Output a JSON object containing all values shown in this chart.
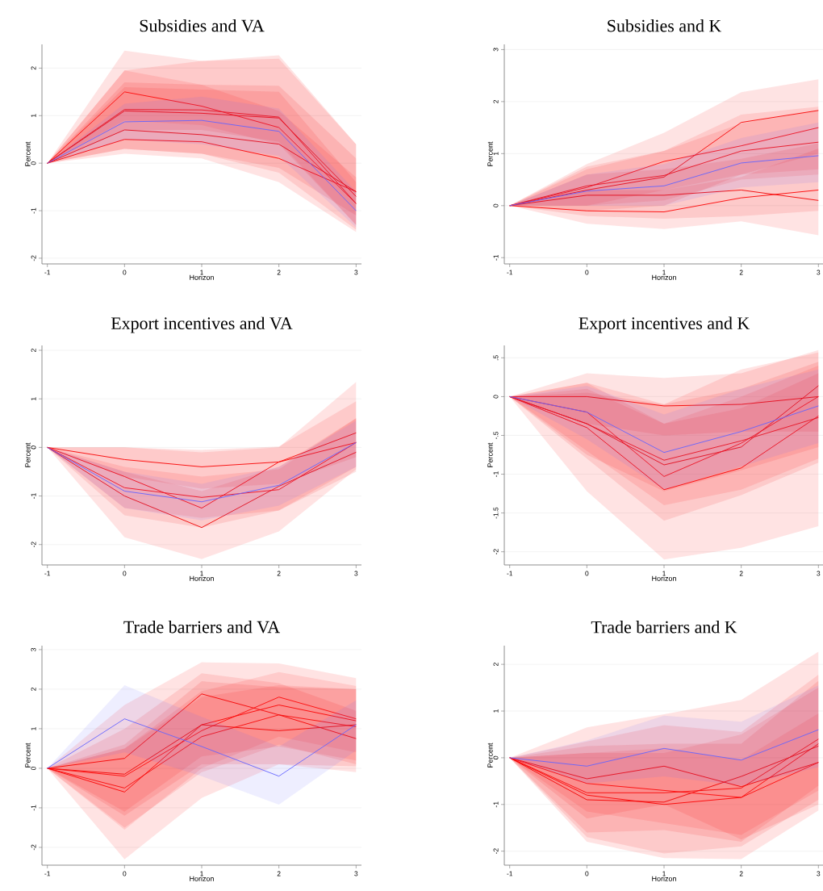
{
  "chart_data": [
    {
      "type": "line",
      "title": "Subsidies and VA",
      "xlabel": "Horizon",
      "ylabel": "Percent",
      "x": [
        -1,
        0,
        1,
        2,
        3
      ],
      "xlim": [
        -1.07,
        3.07
      ],
      "ylim": [
        -2.12,
        2.5
      ],
      "xticks": [
        -1,
        0,
        1,
        2,
        3
      ],
      "yticks": [
        -2,
        -1,
        0,
        1,
        2
      ],
      "grid": "y",
      "series": [
        {
          "color": "#ff0000",
          "values": [
            0,
            0.5,
            0.45,
            0.1,
            -0.6
          ],
          "lower": [
            0,
            0.2,
            0.1,
            -0.4,
            -1.45
          ],
          "upper": [
            0,
            1.95,
            2.15,
            2.2,
            0.4
          ]
        },
        {
          "color": "#f80000",
          "values": [
            0,
            1.1,
            1.05,
            0.95,
            -0.7
          ],
          "lower": [
            0,
            0.3,
            0.2,
            -0.2,
            -1.4
          ],
          "upper": [
            0,
            2.37,
            2.15,
            2.27,
            0.4
          ]
        },
        {
          "color": "#f00000",
          "values": [
            0,
            0.7,
            0.6,
            0.4,
            -0.6
          ],
          "lower": [
            0,
            0.3,
            0.2,
            -0.1,
            -1.1
          ],
          "upper": [
            0,
            1.7,
            1.65,
            1.63,
            0.1
          ]
        },
        {
          "color": "#ff0808",
          "values": [
            0,
            1.5,
            1.2,
            0.75,
            -0.85
          ],
          "lower": [
            0,
            0.9,
            0.8,
            0.4,
            -1.3
          ],
          "upper": [
            0,
            1.95,
            1.65,
            1.1,
            -0.3
          ]
        },
        {
          "color": "#f80808",
          "values": [
            0,
            1.13,
            1.12,
            0.97,
            -0.85
          ],
          "lower": [
            0,
            0.7,
            0.7,
            0.45,
            -1.3
          ],
          "upper": [
            0,
            1.6,
            1.55,
            1.5,
            -0.4
          ]
        },
        {
          "color": "#6464ff",
          "values": [
            0,
            0.87,
            0.9,
            0.67,
            -1.0
          ],
          "lower": [
            0,
            0.5,
            0.4,
            0.15,
            -1.35
          ],
          "upper": [
            0,
            1.25,
            1.4,
            1.15,
            -0.6
          ]
        }
      ]
    },
    {
      "type": "line",
      "title": "Subsidies and K",
      "xlabel": "Horizon",
      "ylabel": "Percent",
      "x": [
        -1,
        0,
        1,
        2,
        3
      ],
      "xlim": [
        -1.07,
        3.07
      ],
      "ylim": [
        -1.12,
        3.1
      ],
      "xticks": [
        -1,
        0,
        1,
        2,
        3
      ],
      "yticks": [
        -1,
        0,
        1,
        2,
        3
      ],
      "grid": "y",
      "series": [
        {
          "color": "#ff0000",
          "values": [
            0,
            -0.1,
            -0.12,
            0.15,
            0.3
          ],
          "lower": [
            0,
            -0.35,
            -0.45,
            -0.3,
            -0.57
          ],
          "upper": [
            0,
            0.3,
            0.3,
            0.55,
            1.1
          ]
        },
        {
          "color": "#f80000",
          "values": [
            0,
            0.3,
            0.55,
            1.6,
            1.83
          ],
          "lower": [
            0,
            -0.1,
            0,
            0.6,
            1.0
          ],
          "upper": [
            0,
            0.8,
            1.4,
            2.18,
            2.43
          ]
        },
        {
          "color": "#f00000",
          "values": [
            0,
            0.2,
            0.2,
            0.3,
            0.1
          ],
          "lower": [
            0,
            -0.2,
            -0.25,
            -0.2,
            -0.1
          ],
          "upper": [
            0,
            0.6,
            0.7,
            0.9,
            1.2
          ]
        },
        {
          "color": "#ff0808",
          "values": [
            0,
            0.35,
            0.85,
            1.15,
            1.5
          ],
          "lower": [
            0,
            0,
            0.3,
            0.6,
            0.7
          ],
          "upper": [
            0,
            0.7,
            1.05,
            1.75,
            1.9
          ]
        },
        {
          "color": "#f80808",
          "values": [
            0,
            0.38,
            0.58,
            1.05,
            1.22
          ],
          "lower": [
            0,
            0,
            0.1,
            0.5,
            0.6
          ],
          "upper": [
            0,
            0.75,
            1.05,
            1.58,
            1.83
          ]
        },
        {
          "color": "#6464ff",
          "values": [
            0,
            0.28,
            0.38,
            0.82,
            0.96
          ],
          "lower": [
            0,
            0,
            0,
            0.35,
            0.45
          ],
          "upper": [
            0,
            0.6,
            0.8,
            1.3,
            1.6
          ]
        }
      ]
    },
    {
      "type": "line",
      "title": "Export incentives and VA",
      "xlabel": "Horizon",
      "ylabel": "Percent",
      "x": [
        -1,
        0,
        1,
        2,
        3
      ],
      "xlim": [
        -1.07,
        3.07
      ],
      "ylim": [
        -2.42,
        2.1
      ],
      "xticks": [
        -1,
        0,
        1,
        2,
        3
      ],
      "yticks": [
        -2,
        -1,
        0,
        1,
        2
      ],
      "grid": "y",
      "series": [
        {
          "color": "#ff0000",
          "values": [
            0,
            -0.6,
            -1.25,
            -0.3,
            0.1
          ],
          "lower": [
            0,
            -1.85,
            -2.3,
            -1.73,
            -0.45
          ],
          "upper": [
            0,
            0,
            -0.1,
            0,
            1.35
          ]
        },
        {
          "color": "#f80000",
          "values": [
            0,
            -0.25,
            -0.4,
            -0.3,
            0.3
          ],
          "lower": [
            0,
            -0.6,
            -0.85,
            -0.75,
            -0.2
          ],
          "upper": [
            0,
            0,
            -0.05,
            0.02,
            0.95
          ]
        },
        {
          "color": "#f00000",
          "values": [
            0,
            -1.0,
            -1.65,
            -0.8,
            -0.1
          ],
          "lower": [
            0,
            -1.4,
            -1.65,
            -1.3,
            -0.5
          ],
          "upper": [
            0,
            -0.5,
            -0.9,
            -0.4,
            0.6
          ]
        },
        {
          "color": "#ff0808",
          "values": [
            0,
            -0.83,
            -1.03,
            -0.87,
            0.1
          ],
          "lower": [
            0,
            -1.25,
            -1.45,
            -1.3,
            -0.4
          ],
          "upper": [
            0,
            -0.4,
            -0.6,
            -0.45,
            0.6
          ]
        },
        {
          "color": "#6464ff",
          "values": [
            0,
            -0.9,
            -1.12,
            -0.78,
            0.1
          ],
          "lower": [
            0,
            -1.25,
            -1.5,
            -1.2,
            -0.4
          ],
          "upper": [
            0,
            -0.5,
            -0.75,
            -0.4,
            0.55
          ]
        }
      ]
    },
    {
      "type": "line",
      "title": "Export incentives and K",
      "xlabel": "Horizon",
      "ylabel": "Percent",
      "x": [
        -1,
        0,
        1,
        2,
        3
      ],
      "xlim": [
        -1.07,
        3.07
      ],
      "ylim": [
        -2.17,
        0.66
      ],
      "xticks": [
        -1,
        0,
        1,
        2,
        3
      ],
      "yticks": [
        -2,
        {
          "value": -1.5,
          "label": "-1.5"
        },
        -1,
        {
          "value": -0.5,
          "label": "-.5"
        },
        0,
        {
          "value": 0.5,
          "label": ".5"
        }
      ],
      "grid": "y",
      "series": [
        {
          "color": "#ff0000",
          "values": [
            0,
            -0.4,
            -1.2,
            -0.92,
            -0.25
          ],
          "lower": [
            0,
            -1.22,
            -2.1,
            -1.95,
            -1.67
          ],
          "upper": [
            0,
            0.18,
            -0.1,
            0.35,
            0.57
          ]
        },
        {
          "color": "#f80000",
          "values": [
            0,
            0,
            -0.12,
            -0.1,
            0
          ],
          "lower": [
            0,
            -0.35,
            -0.5,
            -0.45,
            -0.45
          ],
          "upper": [
            0,
            0.3,
            0.24,
            0.3,
            0.6
          ]
        },
        {
          "color": "#f00000",
          "values": [
            0,
            -0.35,
            -0.88,
            -0.65,
            0.14
          ],
          "lower": [
            0,
            -0.8,
            -1.6,
            -1.27,
            -0.85
          ],
          "upper": [
            0,
            0.05,
            -0.1,
            0.1,
            0.45
          ]
        },
        {
          "color": "#ff0808",
          "values": [
            0,
            -0.2,
            -1.03,
            -0.6,
            0
          ],
          "lower": [
            0,
            -0.7,
            -1.4,
            -1.2,
            -0.8
          ],
          "upper": [
            0,
            0.18,
            -0.35,
            0,
            0.4
          ]
        },
        {
          "color": "#f80808",
          "values": [
            0,
            -0.35,
            -0.82,
            -0.57,
            -0.27
          ],
          "lower": [
            0,
            -0.75,
            -1.22,
            -0.95,
            -0.65
          ],
          "upper": [
            0,
            0.1,
            -0.35,
            -0.15,
            0.3
          ]
        },
        {
          "color": "#6464ff",
          "values": [
            0,
            -0.2,
            -0.72,
            -0.45,
            -0.12
          ],
          "lower": [
            0,
            -0.55,
            -1.2,
            -0.9,
            -0.6
          ],
          "upper": [
            0,
            0.14,
            -0.23,
            0.1,
            0.35
          ]
        }
      ]
    },
    {
      "type": "line",
      "title": "Trade barriers and VA",
      "xlabel": "Horizon",
      "ylabel": "Percent",
      "x": [
        -1,
        0,
        1,
        2,
        3
      ],
      "xlim": [
        -1.07,
        3.07
      ],
      "ylim": [
        -2.45,
        3.1
      ],
      "xticks": [
        -1,
        0,
        1,
        2,
        3
      ],
      "yticks": [
        -2,
        -1,
        0,
        1,
        2,
        3
      ],
      "grid": "y",
      "series": [
        {
          "color": "#ff0000",
          "values": [
            0,
            -0.6,
            1.1,
            1.6,
            1.2
          ],
          "lower": [
            0,
            -2.3,
            -0.75,
            0.1,
            -0.1
          ],
          "upper": [
            0,
            1.6,
            2.68,
            2.65,
            2.28
          ]
        },
        {
          "color": "#f80000",
          "values": [
            0,
            0.25,
            1.88,
            1.35,
            0.75
          ],
          "lower": [
            0,
            -1.1,
            0.3,
            0.55,
            0.2
          ],
          "upper": [
            0,
            1.0,
            2.4,
            2.15,
            1.45
          ]
        },
        {
          "color": "#f00000",
          "values": [
            0,
            -0.15,
            1.1,
            0.95,
            1.1
          ],
          "lower": [
            0,
            -1.2,
            0.1,
            0.1,
            0.05
          ],
          "upper": [
            0,
            0.6,
            2.2,
            2.05,
            2.0
          ]
        },
        {
          "color": "#ff0808",
          "values": [
            0,
            -0.2,
            0.95,
            1.8,
            1.25
          ],
          "lower": [
            0,
            -1.55,
            0,
            0.8,
            0.4
          ],
          "upper": [
            0,
            0.5,
            1.95,
            2.43,
            2.08
          ]
        },
        {
          "color": "#f80808",
          "values": [
            0,
            -0.5,
            0.8,
            1.35,
            1.05
          ],
          "lower": [
            0,
            -1.5,
            -0.1,
            0.6,
            0.1
          ],
          "upper": [
            0,
            0.5,
            1.8,
            2.1,
            2.0
          ]
        },
        {
          "color": "#6464ff",
          "values": [
            0,
            1.25,
            0.55,
            -0.2,
            1.1
          ],
          "lower": [
            0,
            0.4,
            -0.2,
            -0.92,
            0.45
          ],
          "upper": [
            0,
            2.1,
            1.3,
            0.55,
            1.72
          ]
        }
      ]
    },
    {
      "type": "line",
      "title": "Trade barriers and K",
      "xlabel": "Horizon",
      "ylabel": "Percent",
      "x": [
        -1,
        0,
        1,
        2,
        3
      ],
      "xlim": [
        -1.07,
        3.07
      ],
      "ylim": [
        -2.3,
        2.4
      ],
      "xticks": [
        -1,
        0,
        1,
        2,
        3
      ],
      "yticks": [
        -2,
        -1,
        0,
        1,
        2
      ],
      "grid": "y",
      "series": [
        {
          "color": "#ff0000",
          "values": [
            0,
            -0.8,
            -1.0,
            -0.85,
            0.3
          ],
          "lower": [
            0,
            -1.8,
            -2.15,
            -2.17,
            -1.13
          ],
          "upper": [
            0,
            0.65,
            0.93,
            1.24,
            2.27
          ]
        },
        {
          "color": "#f80000",
          "values": [
            0,
            -0.45,
            -0.18,
            -0.62,
            -0.1
          ],
          "lower": [
            0,
            -1.3,
            -1.0,
            -1.75,
            -1.0
          ],
          "upper": [
            0,
            0.35,
            0.7,
            0.55,
            1.78
          ]
        },
        {
          "color": "#f00000",
          "values": [
            0,
            -0.9,
            -0.95,
            -0.4,
            0.25
          ],
          "lower": [
            0,
            -1.7,
            -2.05,
            -1.9,
            -0.9
          ],
          "upper": [
            0,
            0.25,
            0.3,
            0.3,
            1.65
          ]
        },
        {
          "color": "#ff0808",
          "values": [
            0,
            -0.55,
            -0.7,
            -0.85,
            -0.1
          ],
          "lower": [
            0,
            -1.15,
            -1.4,
            -1.65,
            -0.7
          ],
          "upper": [
            0,
            0.1,
            0.2,
            -0.05,
            0.95
          ]
        },
        {
          "color": "#f80808",
          "values": [
            0,
            -0.75,
            -0.75,
            -0.65,
            0.4
          ],
          "lower": [
            0,
            -1.6,
            -1.55,
            -1.8,
            -0.6
          ],
          "upper": [
            0,
            0.1,
            0.1,
            0.5,
            1.5
          ]
        },
        {
          "color": "#6464ff",
          "values": [
            0,
            -0.18,
            0.2,
            -0.05,
            0.6
          ],
          "lower": [
            0,
            -0.55,
            -0.4,
            -0.6,
            -0.2
          ],
          "upper": [
            0,
            0.37,
            0.9,
            0.77,
            1.55
          ]
        }
      ]
    }
  ]
}
